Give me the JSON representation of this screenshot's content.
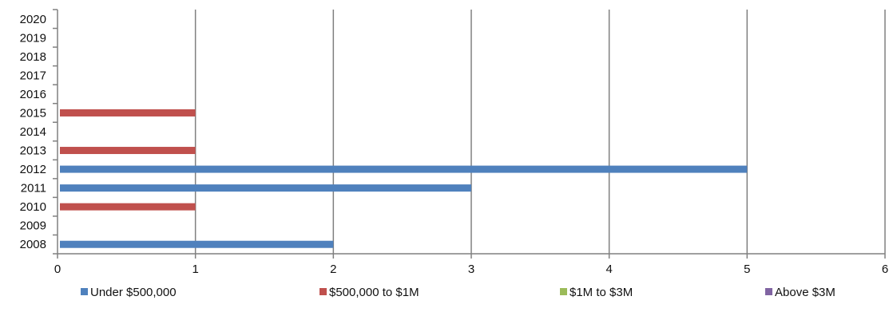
{
  "chart_data": {
    "type": "bar",
    "orientation": "horizontal",
    "categories": [
      "2008",
      "2009",
      "2010",
      "2011",
      "2012",
      "2013",
      "2014",
      "2015",
      "2016",
      "2017",
      "2018",
      "2019",
      "2020"
    ],
    "series": [
      {
        "name": "Under $500,000",
        "color": "#4F81BD",
        "values": [
          2,
          0,
          0,
          3,
          5,
          0,
          0,
          0,
          0,
          0,
          0,
          0,
          0
        ]
      },
      {
        "name": "$500,000 to $1M",
        "color": "#C0504D",
        "values": [
          0,
          0,
          1,
          0,
          0,
          1,
          0,
          1,
          0,
          0,
          0,
          0,
          0
        ]
      },
      {
        "name": "$1M to $3M",
        "color": "#9BBB59",
        "values": [
          0,
          0,
          0,
          0,
          0,
          0,
          0,
          0,
          0,
          0,
          0,
          0,
          0
        ]
      },
      {
        "name": "Above $3M",
        "color": "#8064A2",
        "values": [
          0,
          0,
          0,
          0,
          0,
          0,
          0,
          0,
          0,
          0,
          0,
          0,
          0
        ]
      }
    ],
    "xlim": [
      0,
      6
    ],
    "x_ticks": [
      "0",
      "1",
      "2",
      "3",
      "4",
      "5",
      "6"
    ],
    "grid": "vertical",
    "legend_position": "bottom",
    "title": "",
    "xlabel": "",
    "ylabel": ""
  }
}
